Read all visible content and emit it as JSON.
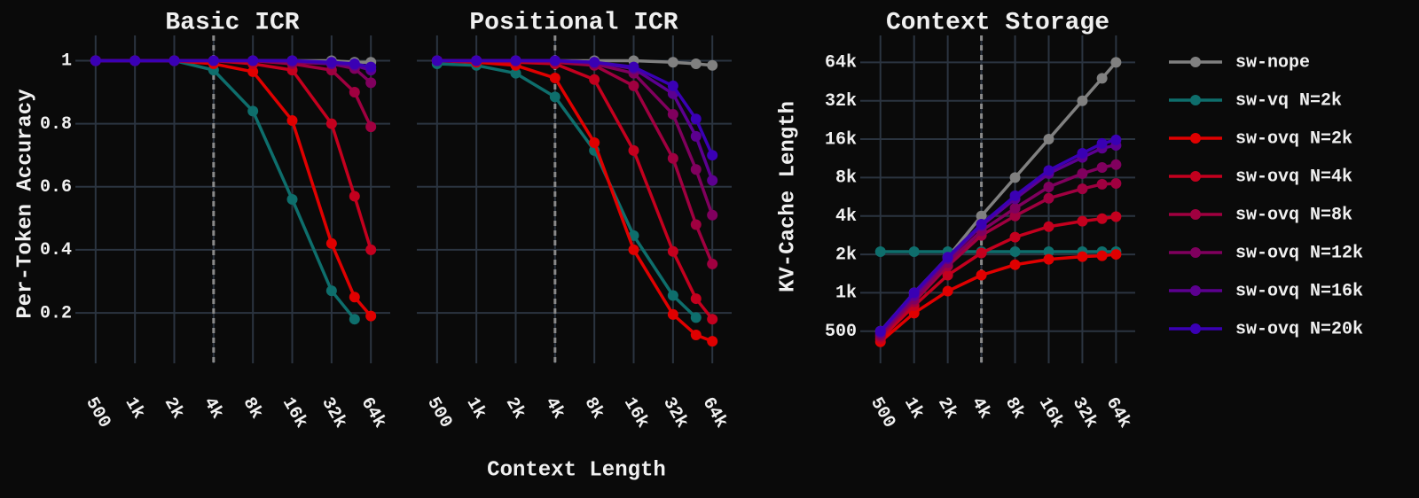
{
  "chart_data": [
    {
      "type": "line",
      "title": "Basic ICR",
      "ylabel": "Per-Token Accuracy",
      "xlabel": "Context Length",
      "x": [
        500,
        1000,
        2000,
        4000,
        8000,
        16000,
        32000,
        48000,
        64000
      ],
      "xlog": true,
      "xlim": [
        350,
        90000
      ],
      "xticks": [
        500,
        {
          "value": 1000,
          "label": "1k"
        },
        {
          "value": 2000,
          "label": "2k"
        },
        {
          "value": 4000,
          "label": "4k"
        },
        {
          "value": 8000,
          "label": "8k"
        },
        {
          "value": 16000,
          "label": "16k"
        },
        {
          "value": 32000,
          "label": "32k"
        },
        {
          "value": 64000,
          "label": "64k"
        }
      ],
      "ylim": [
        0.04,
        1.08
      ],
      "yticks": [
        0.2,
        0.4,
        0.6,
        0.8,
        1
      ],
      "grid": true,
      "vline": 4000,
      "series": [
        {
          "name": "sw-nope",
          "color": "#808080",
          "values": [
            1,
            1,
            1,
            1,
            1,
            1,
            1,
            0.995,
            0.995
          ]
        },
        {
          "name": "sw-vq N=2k",
          "color": "#0e6e6c",
          "values": [
            1,
            1,
            1,
            0.97,
            0.84,
            0.56,
            0.27,
            0.18,
            null
          ]
        },
        {
          "name": "sw-ovq N=2k",
          "color": "#e00000",
          "values": [
            1,
            1,
            1,
            0.99,
            0.965,
            0.81,
            0.42,
            0.25,
            0.19
          ]
        },
        {
          "name": "sw-ovq N=4k",
          "color": "#c4001e",
          "values": [
            1,
            1,
            1,
            1,
            0.99,
            0.97,
            0.8,
            0.57,
            0.4
          ]
        },
        {
          "name": "sw-ovq N=8k",
          "color": "#a00040",
          "values": [
            1,
            1,
            1,
            1,
            1,
            0.99,
            0.97,
            0.9,
            0.79
          ]
        },
        {
          "name": "sw-ovq N=12k",
          "color": "#80005e",
          "values": [
            1,
            1,
            1,
            1,
            1,
            0.995,
            0.99,
            0.975,
            0.93
          ]
        },
        {
          "name": "sw-ovq N=16k",
          "color": "#5c0090",
          "values": [
            1,
            1,
            1,
            1,
            1,
            1,
            0.99,
            0.985,
            0.97
          ]
        },
        {
          "name": "sw-ovq N=20k",
          "color": "#3a00b4",
          "values": [
            1,
            1,
            1,
            1,
            1,
            1,
            0.995,
            0.99,
            0.98
          ]
        }
      ]
    },
    {
      "type": "line",
      "title": "Positional ICR",
      "x": [
        500,
        1000,
        2000,
        4000,
        8000,
        16000,
        32000,
        48000,
        64000
      ],
      "xlog": true,
      "xlim": [
        350,
        90000
      ],
      "xticks": [
        500,
        {
          "value": 1000,
          "label": "1k"
        },
        {
          "value": 2000,
          "label": "2k"
        },
        {
          "value": 4000,
          "label": "4k"
        },
        {
          "value": 8000,
          "label": "8k"
        },
        {
          "value": 16000,
          "label": "16k"
        },
        {
          "value": 32000,
          "label": "32k"
        },
        {
          "value": 64000,
          "label": "64k"
        }
      ],
      "ylim": [
        0.04,
        1.08
      ],
      "yticks": [
        0.2,
        0.4,
        0.6,
        0.8,
        1
      ],
      "ytick_labels": false,
      "grid": true,
      "vline": 4000,
      "series": [
        {
          "name": "sw-nope",
          "color": "#808080",
          "values": [
            1,
            1,
            1,
            1,
            1,
            1,
            0.995,
            0.99,
            0.985
          ]
        },
        {
          "name": "sw-vq N=2k",
          "color": "#0e6e6c",
          "values": [
            0.99,
            0.985,
            0.96,
            0.885,
            0.715,
            0.445,
            0.255,
            0.185,
            null
          ]
        },
        {
          "name": "sw-ovq N=2k",
          "color": "#e00000",
          "values": [
            1,
            0.995,
            0.985,
            0.945,
            0.74,
            0.4,
            0.195,
            0.13,
            0.11
          ]
        },
        {
          "name": "sw-ovq N=4k",
          "color": "#c4001e",
          "values": [
            1,
            1,
            0.995,
            0.99,
            0.94,
            0.715,
            0.395,
            0.245,
            0.18
          ]
        },
        {
          "name": "sw-ovq N=8k",
          "color": "#a00040",
          "values": [
            1,
            1,
            1,
            0.995,
            0.985,
            0.92,
            0.69,
            0.48,
            0.355
          ]
        },
        {
          "name": "sw-ovq N=12k",
          "color": "#80005e",
          "values": [
            1,
            1,
            1,
            1,
            0.99,
            0.96,
            0.83,
            0.655,
            0.51
          ]
        },
        {
          "name": "sw-ovq N=16k",
          "color": "#5c0090",
          "values": [
            1,
            1,
            1,
            1,
            0.995,
            0.975,
            0.895,
            0.76,
            0.62
          ]
        },
        {
          "name": "sw-ovq N=20k",
          "color": "#3a00b4",
          "values": [
            1,
            1,
            1,
            1,
            0.995,
            0.98,
            0.92,
            0.815,
            0.7
          ]
        }
      ]
    },
    {
      "type": "line",
      "title": "Context Storage",
      "ylabel": "KV-Cache Length",
      "x": [
        500,
        1000,
        2000,
        4000,
        8000,
        16000,
        32000,
        48000,
        64000
      ],
      "xlog": true,
      "xlim": [
        330,
        95000
      ],
      "xticks": [
        500,
        {
          "value": 1000,
          "label": "1k"
        },
        {
          "value": 2000,
          "label": "2k"
        },
        {
          "value": 4000,
          "label": "4k"
        },
        {
          "value": 8000,
          "label": "8k"
        },
        {
          "value": 16000,
          "label": "16k"
        },
        {
          "value": 32000,
          "label": "32k"
        },
        {
          "value": 64000,
          "label": "64k"
        }
      ],
      "ylog": true,
      "ylim": [
        280,
        104000
      ],
      "yticks": [
        500,
        {
          "value": 1000,
          "label": "1k"
        },
        {
          "value": 2000,
          "label": "2k"
        },
        {
          "value": 4000,
          "label": "4k"
        },
        {
          "value": 8000,
          "label": "8k"
        },
        {
          "value": 16000,
          "label": "16k"
        },
        {
          "value": 32000,
          "label": "32k"
        },
        {
          "value": 64000,
          "label": "64k"
        }
      ],
      "grid": true,
      "vline": 4000,
      "legend": "right",
      "series": [
        {
          "name": "sw-nope",
          "color": "#808080",
          "values": [
            500,
            1000,
            1900,
            4000,
            8000,
            16000,
            32000,
            48000,
            64000
          ]
        },
        {
          "name": "sw-vq N=2k",
          "color": "#0e6e6c",
          "values": [
            2100,
            2100,
            2100,
            2100,
            2100,
            2100,
            2100,
            2100,
            2100
          ]
        },
        {
          "name": "sw-ovq N=2k",
          "color": "#e00000",
          "values": [
            413,
            693,
            1030,
            1375,
            1660,
            1830,
            1920,
            1950,
            2000
          ]
        },
        {
          "name": "sw-ovq N=4k",
          "color": "#c4001e",
          "values": [
            435,
            790,
            1375,
            2050,
            2730,
            3300,
            3640,
            3810,
            3950
          ]
        },
        {
          "name": "sw-ovq N=8k",
          "color": "#a00040",
          "values": [
            455,
            850,
            1620,
            2820,
            4000,
            5500,
            6530,
            7100,
            7200
          ]
        },
        {
          "name": "sw-ovq N=12k",
          "color": "#80005e",
          "values": [
            470,
            890,
            1720,
            3060,
            4600,
            6750,
            8600,
            9600,
            10100
          ]
        },
        {
          "name": "sw-ovq N=16k",
          "color": "#5c0090",
          "values": [
            488,
            950,
            1850,
            3350,
            5450,
            8600,
            11500,
            13600,
            14300
          ]
        },
        {
          "name": "sw-ovq N=20k",
          "color": "#3a00b4",
          "values": [
            500,
            1000,
            1900,
            3450,
            5760,
            9100,
            12400,
            14800,
            15800
          ]
        }
      ]
    }
  ]
}
